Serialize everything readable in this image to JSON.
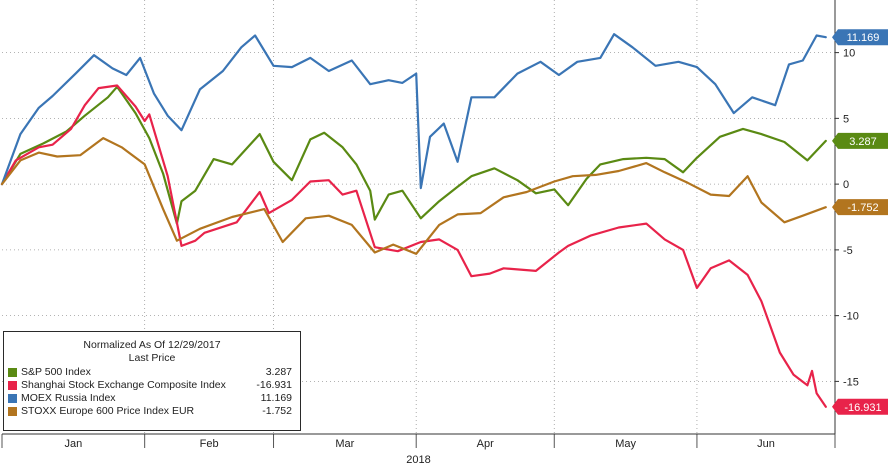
{
  "chart_data": {
    "type": "line",
    "x_range": [
      "2018-01-01",
      "2018-07-01"
    ],
    "ylim": [
      -19,
      14
    ],
    "y_ticks": [
      10,
      5,
      0,
      -5,
      -10,
      -15
    ],
    "x_tick_labels": [
      "Jan",
      "Feb",
      "Mar",
      "Apr",
      "May",
      "Jun"
    ],
    "xlabel": "2018",
    "grid": "dotted",
    "legend_position": "bottom-left",
    "legend_header": [
      "Normalized As Of 12/29/2017",
      "Last Price"
    ],
    "series": [
      {
        "name": "S&P 500 Index",
        "color": "#5a8a13",
        "last_value": "3.287",
        "values": [
          [
            "2018-01-01",
            0
          ],
          [
            "2018-01-05",
            2.3
          ],
          [
            "2018-01-10",
            3.1
          ],
          [
            "2018-01-15",
            4.0
          ],
          [
            "2018-01-19",
            5.2
          ],
          [
            "2018-01-24",
            6.6
          ],
          [
            "2018-01-26",
            7.4
          ],
          [
            "2018-01-30",
            5.4
          ],
          [
            "2018-02-02",
            3.5
          ],
          [
            "2018-02-05",
            0.8
          ],
          [
            "2018-02-08",
            -3.0
          ],
          [
            "2018-02-09",
            -1.3
          ],
          [
            "2018-02-12",
            -0.5
          ],
          [
            "2018-02-16",
            1.9
          ],
          [
            "2018-02-20",
            1.5
          ],
          [
            "2018-02-26",
            3.8
          ],
          [
            "2018-03-01",
            1.7
          ],
          [
            "2018-03-05",
            0.3
          ],
          [
            "2018-03-09",
            3.4
          ],
          [
            "2018-03-12",
            3.9
          ],
          [
            "2018-03-16",
            2.8
          ],
          [
            "2018-03-19",
            1.5
          ],
          [
            "2018-03-22",
            -0.5
          ],
          [
            "2018-03-23",
            -2.7
          ],
          [
            "2018-03-26",
            -0.8
          ],
          [
            "2018-03-29",
            -0.5
          ],
          [
            "2018-04-02",
            -2.6
          ],
          [
            "2018-04-06",
            -1.3
          ],
          [
            "2018-04-10",
            -0.2
          ],
          [
            "2018-04-13",
            0.6
          ],
          [
            "2018-04-18",
            1.2
          ],
          [
            "2018-04-23",
            0.3
          ],
          [
            "2018-04-27",
            -0.7
          ],
          [
            "2018-05-01",
            -0.4
          ],
          [
            "2018-05-04",
            -1.6
          ],
          [
            "2018-05-08",
            0.4
          ],
          [
            "2018-05-11",
            1.5
          ],
          [
            "2018-05-16",
            1.9
          ],
          [
            "2018-05-21",
            2.0
          ],
          [
            "2018-05-25",
            1.9
          ],
          [
            "2018-05-29",
            0.9
          ],
          [
            "2018-06-01",
            2.0
          ],
          [
            "2018-06-06",
            3.6
          ],
          [
            "2018-06-11",
            4.2
          ],
          [
            "2018-06-15",
            3.8
          ],
          [
            "2018-06-20",
            3.2
          ],
          [
            "2018-06-25",
            1.8
          ],
          [
            "2018-06-29",
            3.287
          ]
        ]
      },
      {
        "name": "Shanghai Stock Exchange Composite Index",
        "color": "#e8234a",
        "last_value": "-16.931",
        "values": [
          [
            "2018-01-01",
            0
          ],
          [
            "2018-01-04",
            1.8
          ],
          [
            "2018-01-09",
            2.8
          ],
          [
            "2018-01-12",
            3.0
          ],
          [
            "2018-01-16",
            4.2
          ],
          [
            "2018-01-19",
            6.0
          ],
          [
            "2018-01-22",
            7.3
          ],
          [
            "2018-01-26",
            7.5
          ],
          [
            "2018-01-30",
            5.9
          ],
          [
            "2018-02-01",
            4.8
          ],
          [
            "2018-02-02",
            5.3
          ],
          [
            "2018-02-06",
            0.6
          ],
          [
            "2018-02-09",
            -4.7
          ],
          [
            "2018-02-12",
            -4.3
          ],
          [
            "2018-02-14",
            -3.7
          ],
          [
            "2018-02-21",
            -2.9
          ],
          [
            "2018-02-26",
            -0.6
          ],
          [
            "2018-02-28",
            -2.2
          ],
          [
            "2018-03-05",
            -1.2
          ],
          [
            "2018-03-09",
            0.2
          ],
          [
            "2018-03-13",
            0.3
          ],
          [
            "2018-03-16",
            -0.8
          ],
          [
            "2018-03-19",
            -0.5
          ],
          [
            "2018-03-23",
            -4.8
          ],
          [
            "2018-03-28",
            -5.1
          ],
          [
            "2018-04-02",
            -4.4
          ],
          [
            "2018-04-06",
            -4.2
          ],
          [
            "2018-04-10",
            -5.0
          ],
          [
            "2018-04-13",
            -7.0
          ],
          [
            "2018-04-17",
            -6.8
          ],
          [
            "2018-04-20",
            -6.4
          ],
          [
            "2018-04-27",
            -6.6
          ],
          [
            "2018-05-02",
            -5.2
          ],
          [
            "2018-05-04",
            -4.7
          ],
          [
            "2018-05-09",
            -3.9
          ],
          [
            "2018-05-15",
            -3.3
          ],
          [
            "2018-05-21",
            -3.0
          ],
          [
            "2018-05-25",
            -4.2
          ],
          [
            "2018-05-29",
            -5.0
          ],
          [
            "2018-06-01",
            -7.9
          ],
          [
            "2018-06-04",
            -6.4
          ],
          [
            "2018-06-08",
            -5.8
          ],
          [
            "2018-06-12",
            -6.9
          ],
          [
            "2018-06-15",
            -8.9
          ],
          [
            "2018-06-19",
            -12.8
          ],
          [
            "2018-06-22",
            -14.5
          ],
          [
            "2018-06-25",
            -15.3
          ],
          [
            "2018-06-26",
            -14.2
          ],
          [
            "2018-06-27",
            -15.9
          ],
          [
            "2018-06-29",
            -16.931
          ]
        ]
      },
      {
        "name": "MOEX Russia Index",
        "color": "#3a75b5",
        "last_value": "11.169",
        "values": [
          [
            "2018-01-01",
            0
          ],
          [
            "2018-01-05",
            3.8
          ],
          [
            "2018-01-09",
            5.8
          ],
          [
            "2018-01-12",
            6.7
          ],
          [
            "2018-01-17",
            8.4
          ],
          [
            "2018-01-21",
            9.8
          ],
          [
            "2018-01-25",
            8.8
          ],
          [
            "2018-01-28",
            8.3
          ],
          [
            "2018-01-31",
            9.6
          ],
          [
            "2018-02-03",
            6.9
          ],
          [
            "2018-02-06",
            5.2
          ],
          [
            "2018-02-09",
            4.1
          ],
          [
            "2018-02-13",
            7.2
          ],
          [
            "2018-02-18",
            8.6
          ],
          [
            "2018-02-22",
            10.4
          ],
          [
            "2018-02-25",
            11.3
          ],
          [
            "2018-03-01",
            9.0
          ],
          [
            "2018-03-05",
            8.9
          ],
          [
            "2018-03-09",
            9.6
          ],
          [
            "2018-03-13",
            8.6
          ],
          [
            "2018-03-18",
            9.4
          ],
          [
            "2018-03-22",
            7.6
          ],
          [
            "2018-03-26",
            7.9
          ],
          [
            "2018-03-29",
            7.7
          ],
          [
            "2018-04-01",
            8.4
          ],
          [
            "2018-04-02",
            -0.3
          ],
          [
            "2018-04-04",
            3.6
          ],
          [
            "2018-04-07",
            4.6
          ],
          [
            "2018-04-10",
            1.7
          ],
          [
            "2018-04-13",
            6.6
          ],
          [
            "2018-04-18",
            6.6
          ],
          [
            "2018-04-23",
            8.4
          ],
          [
            "2018-04-28",
            9.3
          ],
          [
            "2018-05-02",
            8.3
          ],
          [
            "2018-05-06",
            9.3
          ],
          [
            "2018-05-11",
            9.6
          ],
          [
            "2018-05-14",
            11.4
          ],
          [
            "2018-05-18",
            10.4
          ],
          [
            "2018-05-23",
            9.0
          ],
          [
            "2018-05-28",
            9.3
          ],
          [
            "2018-06-01",
            8.9
          ],
          [
            "2018-06-05",
            7.6
          ],
          [
            "2018-06-09",
            5.4
          ],
          [
            "2018-06-13",
            6.6
          ],
          [
            "2018-06-18",
            6.0
          ],
          [
            "2018-06-21",
            9.1
          ],
          [
            "2018-06-24",
            9.4
          ],
          [
            "2018-06-27",
            11.3
          ],
          [
            "2018-06-29",
            11.169
          ]
        ]
      },
      {
        "name": "STOXX Europe 600 Price Index EUR",
        "color": "#b2751f",
        "last_value": "-1.752",
        "values": [
          [
            "2018-01-01",
            0
          ],
          [
            "2018-01-05",
            1.8
          ],
          [
            "2018-01-09",
            2.4
          ],
          [
            "2018-01-13",
            2.1
          ],
          [
            "2018-01-18",
            2.2
          ],
          [
            "2018-01-23",
            3.5
          ],
          [
            "2018-01-27",
            2.8
          ],
          [
            "2018-02-01",
            1.5
          ],
          [
            "2018-02-05",
            -1.9
          ],
          [
            "2018-02-08",
            -4.3
          ],
          [
            "2018-02-13",
            -3.4
          ],
          [
            "2018-02-20",
            -2.5
          ],
          [
            "2018-02-27",
            -1.9
          ],
          [
            "2018-03-03",
            -4.4
          ],
          [
            "2018-03-08",
            -2.6
          ],
          [
            "2018-03-13",
            -2.4
          ],
          [
            "2018-03-18",
            -3.1
          ],
          [
            "2018-03-23",
            -5.2
          ],
          [
            "2018-03-27",
            -4.6
          ],
          [
            "2018-04-01",
            -5.3
          ],
          [
            "2018-04-06",
            -3.1
          ],
          [
            "2018-04-10",
            -2.3
          ],
          [
            "2018-04-15",
            -2.2
          ],
          [
            "2018-04-20",
            -1.0
          ],
          [
            "2018-04-25",
            -0.6
          ],
          [
            "2018-05-01",
            0.2
          ],
          [
            "2018-05-05",
            0.6
          ],
          [
            "2018-05-10",
            0.7
          ],
          [
            "2018-05-15",
            1.0
          ],
          [
            "2018-05-21",
            1.6
          ],
          [
            "2018-05-25",
            0.9
          ],
          [
            "2018-05-30",
            0.1
          ],
          [
            "2018-06-04",
            -0.8
          ],
          [
            "2018-06-08",
            -0.9
          ],
          [
            "2018-06-12",
            0.6
          ],
          [
            "2018-06-15",
            -1.4
          ],
          [
            "2018-06-20",
            -2.9
          ],
          [
            "2018-06-24",
            -2.4
          ],
          [
            "2018-06-29",
            -1.752
          ]
        ]
      }
    ]
  }
}
